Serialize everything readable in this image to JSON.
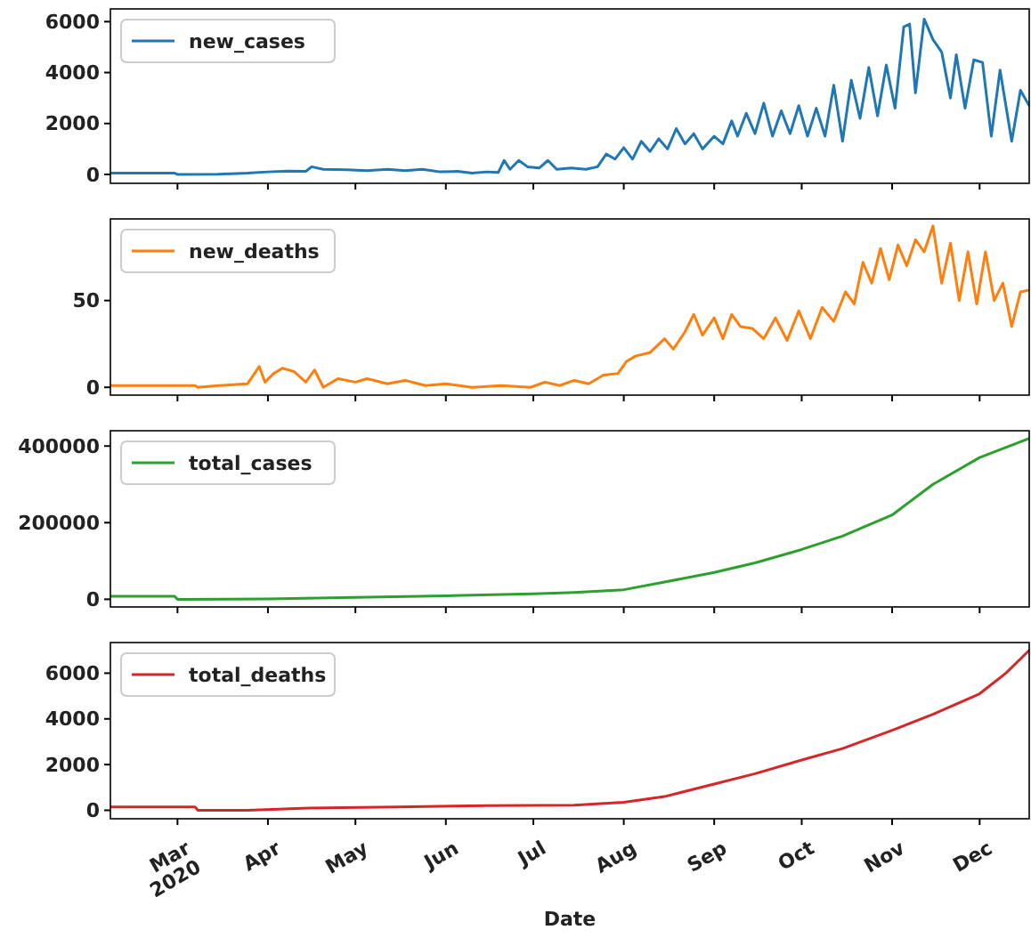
{
  "chart_data": [
    {
      "type": "line",
      "xlim": [
        "2020-02-07",
        "2020-12-18"
      ],
      "xticks": [
        {
          "value": "2020-03-01",
          "label": null
        },
        {
          "value": "2020-04-01",
          "label": null
        },
        {
          "value": "2020-05-01",
          "label": null
        },
        {
          "value": "2020-06-01",
          "label": null
        },
        {
          "value": "2020-07-01",
          "label": null
        },
        {
          "value": "2020-08-01",
          "label": null
        },
        {
          "value": "2020-09-01",
          "label": null
        },
        {
          "value": "2020-10-01",
          "label": null
        },
        {
          "value": "2020-11-01",
          "label": null
        },
        {
          "value": "2020-12-01",
          "label": null
        }
      ],
      "ylim": [
        -350,
        6500
      ],
      "yticks": [
        0,
        2000,
        4000,
        6000
      ],
      "tick_labels": "y",
      "legend": "top left",
      "grid": false,
      "series": [
        {
          "name": "new_cases",
          "color": "#1f77b4",
          "x": [
            "2020-02-07",
            "2020-02-20",
            "2020-02-29",
            "2020-03-01",
            "2020-03-15",
            "2020-03-25",
            "2020-04-01",
            "2020-04-08",
            "2020-04-14",
            "2020-04-16",
            "2020-04-20",
            "2020-04-28",
            "2020-05-05",
            "2020-05-12",
            "2020-05-18",
            "2020-05-24",
            "2020-05-30",
            "2020-06-05",
            "2020-06-10",
            "2020-06-15",
            "2020-06-19",
            "2020-06-21",
            "2020-06-23",
            "2020-06-26",
            "2020-06-29",
            "2020-07-03",
            "2020-07-06",
            "2020-07-09",
            "2020-07-14",
            "2020-07-19",
            "2020-07-23",
            "2020-07-26",
            "2020-07-29",
            "2020-08-01",
            "2020-08-04",
            "2020-08-07",
            "2020-08-10",
            "2020-08-13",
            "2020-08-16",
            "2020-08-19",
            "2020-08-22",
            "2020-08-25",
            "2020-08-28",
            "2020-09-01",
            "2020-09-04",
            "2020-09-07",
            "2020-09-09",
            "2020-09-12",
            "2020-09-15",
            "2020-09-18",
            "2020-09-21",
            "2020-09-24",
            "2020-09-27",
            "2020-09-30",
            "2020-10-03",
            "2020-10-06",
            "2020-10-09",
            "2020-10-12",
            "2020-10-15",
            "2020-10-18",
            "2020-10-21",
            "2020-10-24",
            "2020-10-27",
            "2020-10-30",
            "2020-11-02",
            "2020-11-05",
            "2020-11-07",
            "2020-11-09",
            "2020-11-12",
            "2020-11-15",
            "2020-11-18",
            "2020-11-21",
            "2020-11-23",
            "2020-11-26",
            "2020-11-29",
            "2020-12-02",
            "2020-12-05",
            "2020-12-08",
            "2020-12-12",
            "2020-12-15",
            "2020-12-18"
          ],
          "values": [
            50,
            50,
            50,
            0,
            10,
            50,
            100,
            130,
            120,
            300,
            200,
            180,
            150,
            200,
            150,
            200,
            100,
            120,
            50,
            100,
            80,
            550,
            200,
            550,
            300,
            250,
            550,
            200,
            250,
            200,
            300,
            800,
            600,
            1050,
            600,
            1300,
            900,
            1400,
            1000,
            1800,
            1200,
            1600,
            1000,
            1500,
            1200,
            2100,
            1500,
            2400,
            1600,
            2800,
            1500,
            2500,
            1600,
            2700,
            1500,
            2600,
            1500,
            3500,
            1300,
            3700,
            2200,
            4200,
            2300,
            4300,
            2600,
            5800,
            5900,
            3200,
            6100,
            5300,
            4800,
            3000,
            4700,
            2600,
            4500,
            4400,
            1500,
            4100,
            1300,
            3300,
            2700
          ]
        }
      ]
    },
    {
      "type": "line",
      "xlim": [
        "2020-02-07",
        "2020-12-18"
      ],
      "xticks": [
        {
          "value": "2020-03-01",
          "label": null
        },
        {
          "value": "2020-04-01",
          "label": null
        },
        {
          "value": "2020-05-01",
          "label": null
        },
        {
          "value": "2020-06-01",
          "label": null
        },
        {
          "value": "2020-07-01",
          "label": null
        },
        {
          "value": "2020-08-01",
          "label": null
        },
        {
          "value": "2020-09-01",
          "label": null
        },
        {
          "value": "2020-10-01",
          "label": null
        },
        {
          "value": "2020-11-01",
          "label": null
        },
        {
          "value": "2020-12-01",
          "label": null
        }
      ],
      "ylim": [
        -4.5,
        97
      ],
      "yticks": [
        0,
        50
      ],
      "tick_labels": "y",
      "legend": "top left",
      "grid": false,
      "series": [
        {
          "name": "new_deaths",
          "color": "#ff7f0e",
          "x": [
            "2020-02-07",
            "2020-03-07",
            "2020-03-08",
            "2020-03-15",
            "2020-03-25",
            "2020-03-29",
            "2020-03-31",
            "2020-04-03",
            "2020-04-06",
            "2020-04-10",
            "2020-04-14",
            "2020-04-17",
            "2020-04-20",
            "2020-04-25",
            "2020-05-01",
            "2020-05-05",
            "2020-05-12",
            "2020-05-18",
            "2020-05-25",
            "2020-06-01",
            "2020-06-10",
            "2020-06-20",
            "2020-06-30",
            "2020-07-05",
            "2020-07-10",
            "2020-07-15",
            "2020-07-20",
            "2020-07-25",
            "2020-07-30",
            "2020-08-02",
            "2020-08-05",
            "2020-08-10",
            "2020-08-15",
            "2020-08-18",
            "2020-08-22",
            "2020-08-25",
            "2020-08-28",
            "2020-09-01",
            "2020-09-04",
            "2020-09-07",
            "2020-09-10",
            "2020-09-14",
            "2020-09-18",
            "2020-09-22",
            "2020-09-26",
            "2020-09-30",
            "2020-10-04",
            "2020-10-08",
            "2020-10-12",
            "2020-10-16",
            "2020-10-19",
            "2020-10-22",
            "2020-10-25",
            "2020-10-28",
            "2020-10-31",
            "2020-11-03",
            "2020-11-06",
            "2020-11-09",
            "2020-11-12",
            "2020-11-15",
            "2020-11-18",
            "2020-11-21",
            "2020-11-24",
            "2020-11-27",
            "2020-11-30",
            "2020-12-03",
            "2020-12-06",
            "2020-12-09",
            "2020-12-12",
            "2020-12-15",
            "2020-12-18"
          ],
          "values": [
            1,
            1,
            0,
            1,
            2,
            12,
            3,
            8,
            11,
            9,
            3,
            10,
            0,
            5,
            3,
            5,
            2,
            4,
            1,
            2,
            0,
            1,
            0,
            3,
            1,
            4,
            2,
            7,
            8,
            15,
            18,
            20,
            28,
            22,
            32,
            42,
            30,
            40,
            28,
            42,
            35,
            34,
            28,
            40,
            27,
            44,
            28,
            46,
            38,
            55,
            48,
            72,
            60,
            80,
            62,
            82,
            70,
            85,
            78,
            93,
            60,
            83,
            50,
            78,
            48,
            78,
            50,
            60,
            35,
            55,
            56
          ]
        }
      ]
    },
    {
      "type": "line",
      "xlim": [
        "2020-02-07",
        "2020-12-18"
      ],
      "xticks": [
        {
          "value": "2020-03-01",
          "label": null
        },
        {
          "value": "2020-04-01",
          "label": null
        },
        {
          "value": "2020-05-01",
          "label": null
        },
        {
          "value": "2020-06-01",
          "label": null
        },
        {
          "value": "2020-07-01",
          "label": null
        },
        {
          "value": "2020-08-01",
          "label": null
        },
        {
          "value": "2020-09-01",
          "label": null
        },
        {
          "value": "2020-10-01",
          "label": null
        },
        {
          "value": "2020-11-01",
          "label": null
        },
        {
          "value": "2020-12-01",
          "label": null
        }
      ],
      "ylim": [
        -20000,
        440000
      ],
      "yticks": [
        0,
        200000,
        400000
      ],
      "tick_labels": "y",
      "legend": "top left",
      "grid": false,
      "series": [
        {
          "name": "total_cases",
          "color": "#2ca02c",
          "x": [
            "2020-02-07",
            "2020-02-29",
            "2020-03-01",
            "2020-04-01",
            "2020-05-01",
            "2020-06-01",
            "2020-07-01",
            "2020-07-15",
            "2020-08-01",
            "2020-08-15",
            "2020-09-01",
            "2020-09-15",
            "2020-10-01",
            "2020-10-15",
            "2020-11-01",
            "2020-11-15",
            "2020-12-01",
            "2020-12-18"
          ],
          "values": [
            8000,
            8000,
            0,
            1000,
            5000,
            9000,
            14000,
            18000,
            25000,
            45000,
            70000,
            95000,
            130000,
            165000,
            220000,
            300000,
            370000,
            420000
          ]
        }
      ]
    },
    {
      "type": "line",
      "xlim": [
        "2020-02-07",
        "2020-12-18"
      ],
      "xticks": [
        {
          "value": "2020-03-01",
          "label": "Mar\n2020"
        },
        {
          "value": "2020-04-01",
          "label": "Apr"
        },
        {
          "value": "2020-05-01",
          "label": "May"
        },
        {
          "value": "2020-06-01",
          "label": "Jun"
        },
        {
          "value": "2020-07-01",
          "label": "Jul"
        },
        {
          "value": "2020-08-01",
          "label": "Aug"
        },
        {
          "value": "2020-09-01",
          "label": "Sep"
        },
        {
          "value": "2020-10-01",
          "label": "Oct"
        },
        {
          "value": "2020-11-01",
          "label": "Nov"
        },
        {
          "value": "2020-12-01",
          "label": "Dec"
        }
      ],
      "ylim": [
        -370,
        7340
      ],
      "yticks": [
        0,
        2000,
        4000,
        6000
      ],
      "xlabel": "Date",
      "legend": "top left",
      "grid": false,
      "series": [
        {
          "name": "total_deaths",
          "color": "#d62728",
          "x": [
            "2020-02-07",
            "2020-03-07",
            "2020-03-08",
            "2020-03-25",
            "2020-04-15",
            "2020-05-15",
            "2020-06-15",
            "2020-07-15",
            "2020-08-01",
            "2020-08-15",
            "2020-09-01",
            "2020-09-15",
            "2020-10-01",
            "2020-10-15",
            "2020-11-01",
            "2020-11-15",
            "2020-12-01",
            "2020-12-10",
            "2020-12-18"
          ],
          "values": [
            150,
            150,
            0,
            0,
            100,
            150,
            200,
            220,
            350,
            600,
            1150,
            1600,
            2200,
            2700,
            3500,
            4200,
            5100,
            6000,
            7000
          ]
        }
      ]
    }
  ]
}
